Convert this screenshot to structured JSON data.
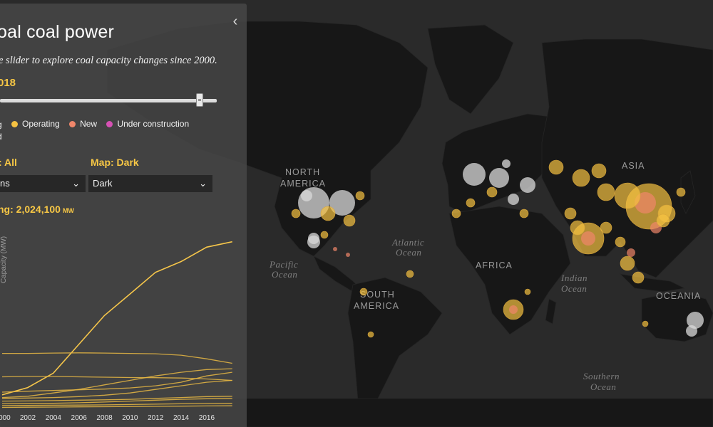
{
  "panel": {
    "title": "oal coal power",
    "subtitle": "e slider to explore coal capacity changes since 2000.",
    "year": "018",
    "collapse_icon": "‹",
    "legend": [
      {
        "label": "g",
        "color": ""
      },
      {
        "label": "Operating",
        "color": "#f5c242"
      },
      {
        "label": "New",
        "color": "#f0866a"
      },
      {
        "label": "Under construction",
        "color": "#d651b4"
      }
    ],
    "legend_second_line": "d",
    "chart_label": ": All",
    "map_label": "Map: Dark",
    "chart_select": "ns",
    "map_select": "Dark",
    "total_label": "ng: 2,024,100",
    "total_unit": "MW"
  },
  "map": {
    "continents": [
      "NORTH",
      "AMERICA",
      "SOUTH",
      "AMERICA",
      "AFRICA",
      "ASIA",
      "OCEANIA"
    ],
    "oceans": [
      "Atlantic",
      "Ocean",
      "Pacific",
      "Ocean",
      "Indian",
      "Ocean",
      "Southern",
      "Ocean"
    ],
    "colors": {
      "operating": "#f5c242",
      "new": "#f0866a",
      "retired": "#d9d9d9",
      "land": "#171717",
      "ocean": "#2a2a2a"
    }
  },
  "chart_data": {
    "type": "line",
    "ylabel": "Capacity (MW)",
    "x": [
      2000,
      2002,
      2004,
      2006,
      2008,
      2010,
      2012,
      2014,
      2016,
      2018
    ],
    "xlim": [
      2000,
      2018.8
    ],
    "ylim": [
      0,
      1000000
    ],
    "series": [
      {
        "values": [
          80000,
          120000,
          200000,
          360000,
          520000,
          640000,
          760000,
          820000,
          900000,
          930000
        ]
      },
      {
        "values": [
          310000,
          310000,
          312000,
          313000,
          312000,
          310000,
          308000,
          300000,
          280000,
          255000
        ]
      },
      {
        "values": [
          180000,
          182000,
          182000,
          180000,
          178000,
          176000,
          175000,
          173000,
          168000,
          160000
        ]
      },
      {
        "values": [
          65000,
          72000,
          90000,
          110000,
          135000,
          160000,
          185000,
          205000,
          220000,
          225000
        ]
      },
      {
        "values": [
          95000,
          100000,
          104000,
          108000,
          112000,
          118000,
          130000,
          150000,
          185000,
          205000
        ]
      },
      {
        "values": [
          60000,
          62000,
          65000,
          70000,
          78000,
          90000,
          110000,
          130000,
          150000,
          160000
        ]
      },
      {
        "values": [
          45000,
          46000,
          48000,
          50000,
          52000,
          55000,
          60000,
          65000,
          70000,
          72000
        ]
      },
      {
        "values": [
          30000,
          31000,
          33000,
          36000,
          40000,
          45000,
          50000,
          55000,
          58000,
          60000
        ]
      },
      {
        "values": [
          20000,
          21000,
          22000,
          23000,
          24000,
          26000,
          28000,
          30000,
          32000,
          33000
        ]
      },
      {
        "values": [
          10000,
          11000,
          12000,
          13000,
          14000,
          15000,
          16000,
          17000,
          18000,
          19000
        ]
      }
    ],
    "tick_labels": [
      "000",
      "2002",
      "2004",
      "2006",
      "2008",
      "2010",
      "2012",
      "2014",
      "2016"
    ]
  }
}
